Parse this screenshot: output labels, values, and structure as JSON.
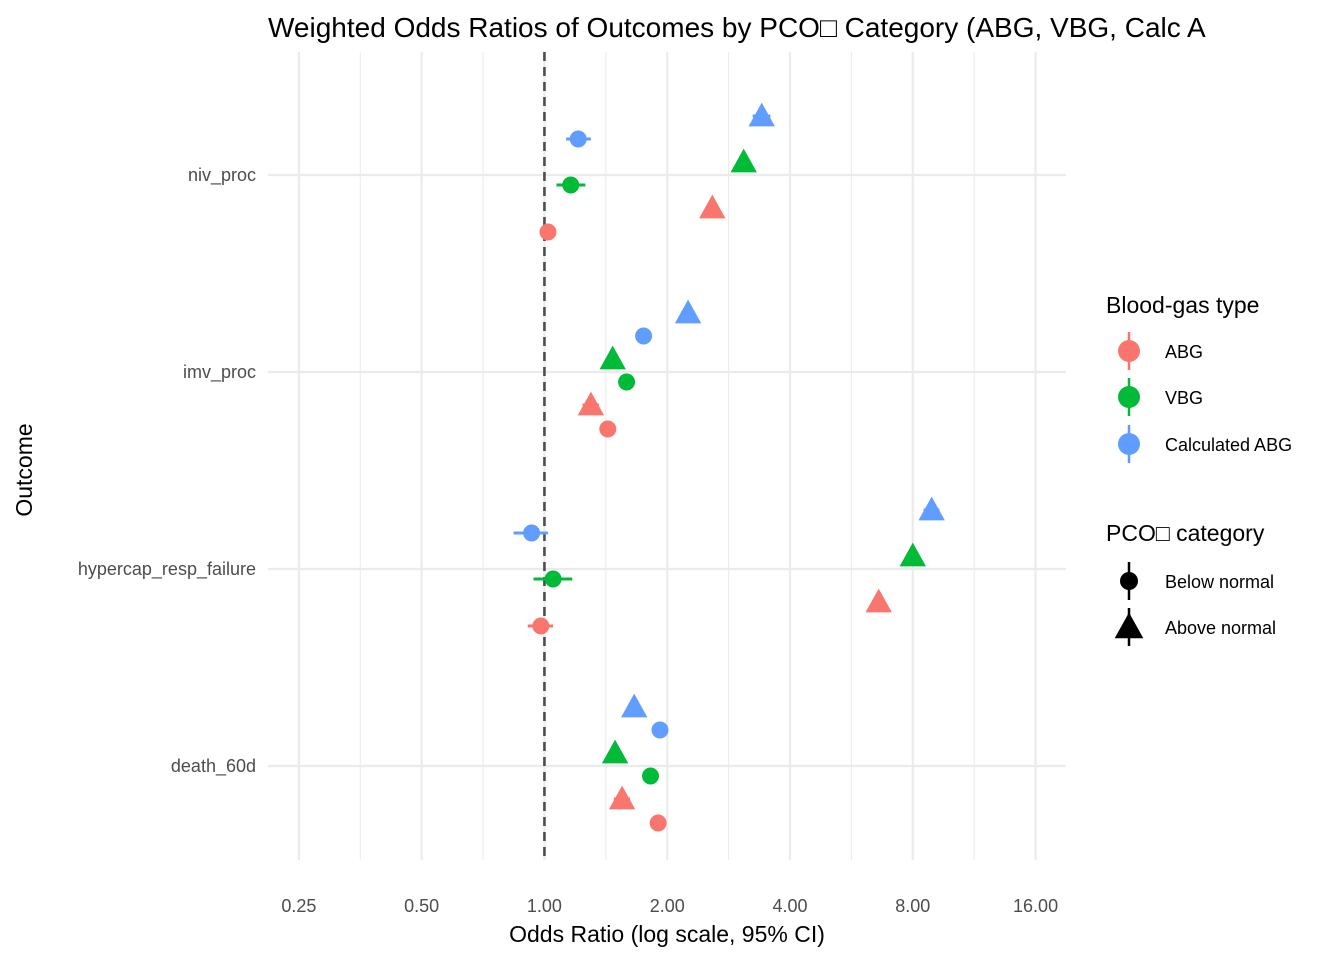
{
  "chart_data": {
    "type": "scatter",
    "subtype": "forest-plot",
    "title": "Weighted Odds Ratios of Outcomes by PCO□ Category (ABG, VBG, Calc A",
    "xlabel": "Odds Ratio (log scale, 95% CI)",
    "ylabel": "Outcome",
    "x_scale": "log2",
    "xlim": [
      0.21,
      19.0
    ],
    "x_ticks": [
      0.25,
      0.5,
      1,
      2,
      4,
      8,
      16
    ],
    "x_tick_labels": [
      "0.25",
      "0.50",
      "1.00",
      "2.00",
      "4.00",
      "8.00",
      "16.00"
    ],
    "reference_line": 1,
    "grid": true,
    "legend_position": "right",
    "categories": [
      "niv_proc",
      "imv_proc",
      "hypercap_resp_failure",
      "death_60d"
    ],
    "colors": {
      "ABG": "#F8766D",
      "VBG": "#00BA38",
      "Calculated ABG": "#619CFF"
    },
    "series": [
      {
        "name": "ABG",
        "pco2": "Below normal",
        "or": [
          1.02,
          1.43,
          0.98,
          1.9
        ],
        "lo": [
          0.98,
          1.38,
          0.91,
          1.84
        ],
        "hi": [
          1.06,
          1.48,
          1.05,
          1.96
        ]
      },
      {
        "name": "ABG",
        "pco2": "Above normal",
        "or": [
          2.58,
          1.3,
          6.6,
          1.55
        ],
        "lo": [
          2.5,
          1.24,
          6.35,
          1.48
        ],
        "hi": [
          2.66,
          1.36,
          6.85,
          1.62
        ]
      },
      {
        "name": "VBG",
        "pco2": "Below normal",
        "or": [
          1.16,
          1.59,
          1.05,
          1.82
        ],
        "lo": [
          1.07,
          1.55,
          0.94,
          1.77
        ],
        "hi": [
          1.26,
          1.63,
          1.17,
          1.87
        ]
      },
      {
        "name": "VBG",
        "pco2": "Above normal",
        "or": [
          3.08,
          1.47,
          8.0,
          1.49
        ],
        "lo": [
          3.0,
          1.42,
          7.8,
          1.45
        ],
        "hi": [
          3.16,
          1.52,
          8.2,
          1.53
        ]
      },
      {
        "name": "Calculated ABG",
        "pco2": "Below normal",
        "or": [
          1.21,
          1.75,
          0.93,
          1.92
        ],
        "lo": [
          1.13,
          1.68,
          0.84,
          1.86
        ],
        "hi": [
          1.3,
          1.82,
          1.02,
          1.98
        ]
      },
      {
        "name": "Calculated ABG",
        "pco2": "Above normal",
        "or": [
          3.41,
          2.25,
          8.9,
          1.66
        ],
        "lo": [
          3.24,
          2.16,
          8.5,
          1.6
        ],
        "hi": [
          3.58,
          2.34,
          9.3,
          1.72
        ]
      }
    ]
  },
  "legend": {
    "color_title": "Blood-gas type",
    "color_items": [
      "ABG",
      "VBG",
      "Calculated ABG"
    ],
    "shape_title": "PCO□ category",
    "shape_items": [
      "Below normal",
      "Above normal"
    ]
  }
}
